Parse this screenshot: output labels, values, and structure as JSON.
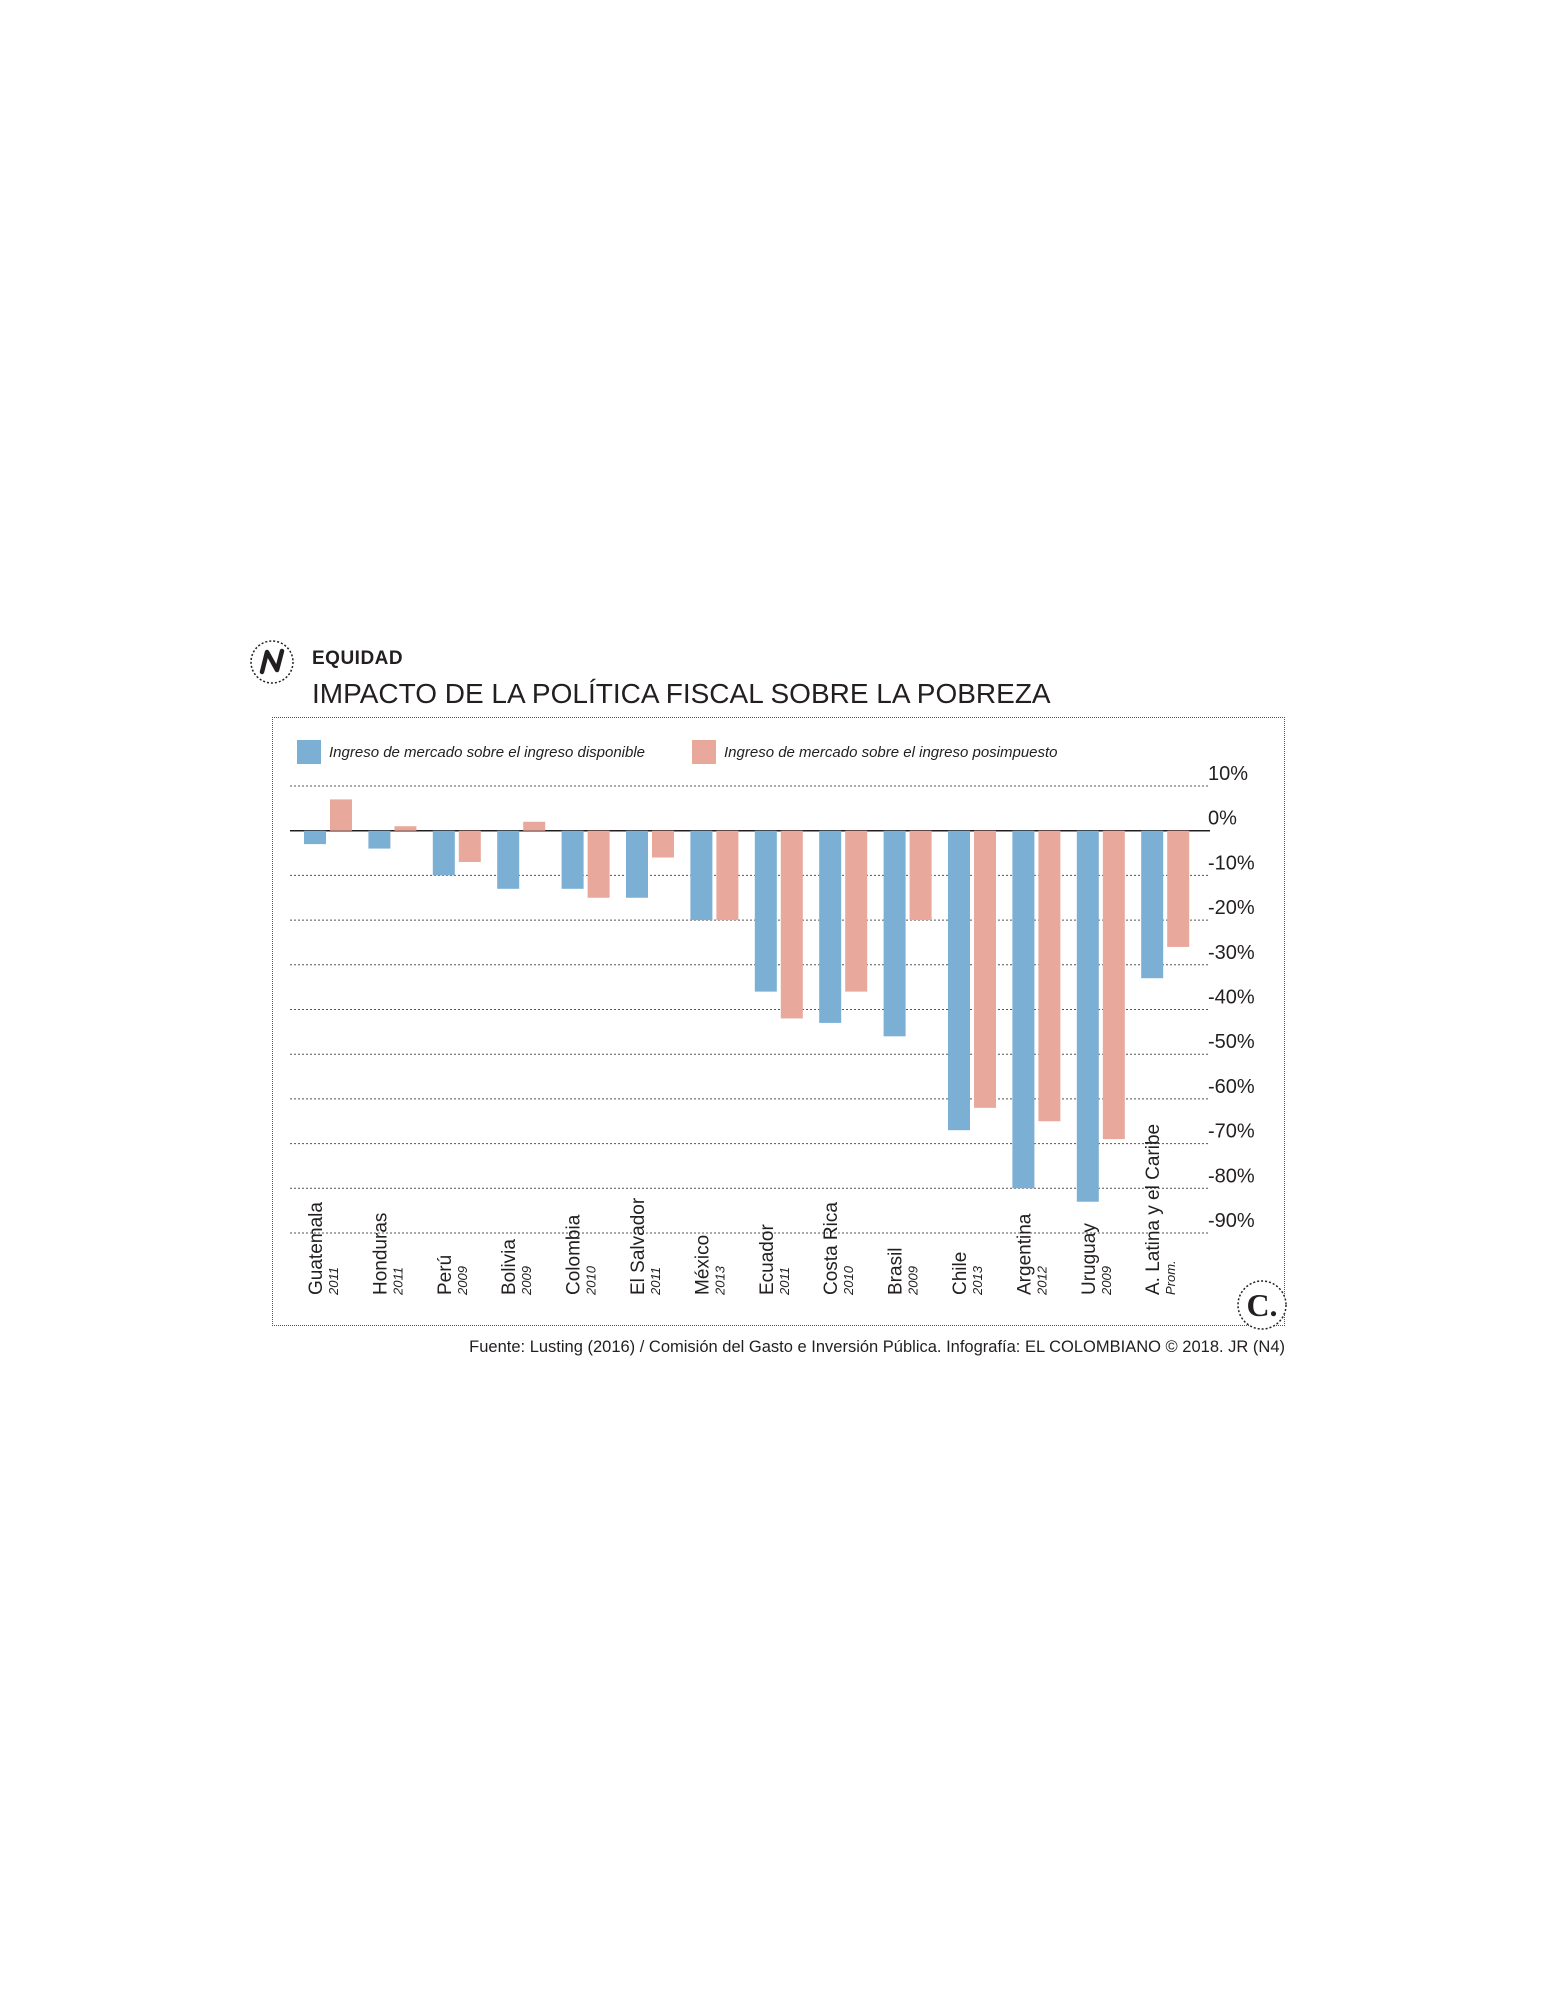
{
  "header": {
    "kicker": "EQUIDAD",
    "title": "IMPACTO DE LA POLÍTICA FISCAL SOBRE LA POBREZA"
  },
  "logos": {
    "top_left_icon": "n-logo-icon",
    "bottom_right_icon": "el-colombiano-c-logo-icon",
    "bottom_right_letter": "C."
  },
  "source": "Fuente: Lusting (2016) / Comisión del Gasto e Inversión Pública. Infografía: EL COLOMBIANO © 2018. JR (N4)",
  "chart_data": {
    "type": "bar",
    "title": "IMPACTO DE LA POLÍTICA FISCAL SOBRE LA POBREZA",
    "xlabel": "",
    "ylabel": "",
    "ylim": [
      -90,
      10
    ],
    "yticks": [
      "10%",
      "0%",
      "-10%",
      "-20%",
      "-30%",
      "-40%",
      "-50%",
      "-60%",
      "-70%",
      "-80%",
      "-90%"
    ],
    "ytick_values": [
      10,
      0,
      -10,
      -20,
      -30,
      -40,
      -50,
      -60,
      -70,
      -80,
      -90
    ],
    "grid": "horizontal dotted",
    "legend_position": "top-left",
    "categories": [
      "Guatemala",
      "Honduras",
      "Perú",
      "Bolivia",
      "Colombia",
      "El Salvador",
      "México",
      "Ecuador",
      "Costa Rica",
      "Brasil",
      "Chile",
      "Argentina",
      "Uruguay",
      "A. Latina y el Caribe"
    ],
    "category_years": [
      "2011",
      "2011",
      "2009",
      "2009",
      "2010",
      "2011",
      "2013",
      "2011",
      "2010",
      "2009",
      "2013",
      "2012",
      "2009",
      "Prom."
    ],
    "series": [
      {
        "name": "Ingreso de mercado sobre el ingreso disponible",
        "color": "#7bafd4",
        "values": [
          -3,
          -4,
          -10,
          -13,
          -13,
          -15,
          -20,
          -36,
          -43,
          -46,
          -67,
          -80,
          -83,
          -33
        ]
      },
      {
        "name": "Ingreso de mercado sobre el ingreso posimpuesto",
        "color": "#e8a89c",
        "values": [
          7,
          1,
          -7,
          2,
          -15,
          -6,
          -20,
          -42,
          -36,
          -20,
          -62,
          -65,
          -69,
          -26
        ]
      }
    ]
  }
}
